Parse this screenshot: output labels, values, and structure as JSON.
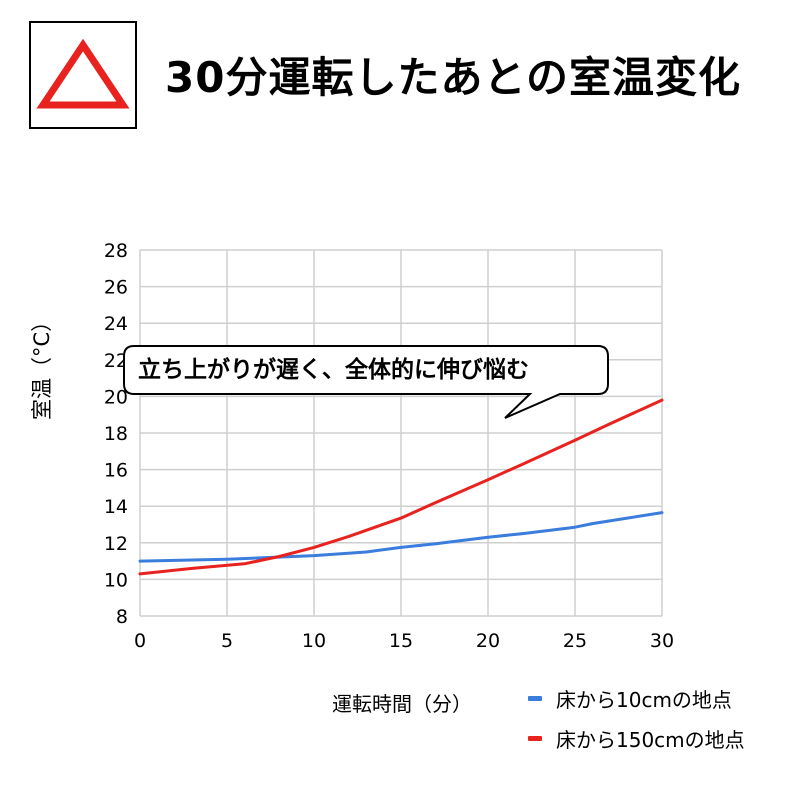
{
  "badge": {
    "icon": "triangle-icon",
    "color": "#e8221e"
  },
  "title": "30分運転したあとの室温変化",
  "callout": "立ち上がりが遅く、全体的に伸び悩む",
  "chart_data": {
    "type": "line",
    "xlabel": "運転時間（分）",
    "ylabel": "室温（°C）",
    "xlim": [
      0,
      30
    ],
    "ylim": [
      8,
      28
    ],
    "xticks": [
      0,
      5,
      10,
      15,
      20,
      25,
      30
    ],
    "yticks": [
      8,
      10,
      12,
      14,
      16,
      18,
      20,
      22,
      24,
      26,
      28
    ],
    "grid": true,
    "legend_position": "bottom-right",
    "series": [
      {
        "name": "床から10cmの地点",
        "color": "#3b7ddd",
        "x": [
          0,
          5,
          10,
          13,
          15,
          17,
          20,
          22,
          25,
          26,
          28,
          30
        ],
        "y": [
          11.0,
          11.1,
          11.3,
          11.5,
          11.75,
          11.95,
          12.3,
          12.5,
          12.85,
          13.05,
          13.35,
          13.65
        ]
      },
      {
        "name": "床から150cmの地点",
        "color": "#e8221e",
        "x": [
          0,
          3,
          6,
          8,
          10,
          12,
          15,
          17,
          20,
          22,
          25,
          27,
          30
        ],
        "y": [
          10.3,
          10.6,
          10.85,
          11.25,
          11.75,
          12.35,
          13.35,
          14.2,
          15.45,
          16.3,
          17.6,
          18.5,
          19.8
        ]
      }
    ]
  }
}
